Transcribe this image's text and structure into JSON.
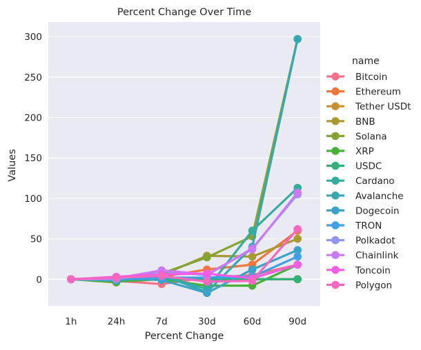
{
  "chart_data": {
    "type": "line",
    "title": "Percent Change Over Time",
    "xlabel": "Percent Change",
    "ylabel": "Values",
    "categories": [
      "1h",
      "24h",
      "7d",
      "30d",
      "60d",
      "90d"
    ],
    "ylim": [
      -33,
      318
    ],
    "yticks": [
      0,
      50,
      100,
      150,
      200,
      250,
      300
    ],
    "grid": true,
    "legend_title": "name",
    "legend_position": "right",
    "series": [
      {
        "name": "Bitcoin",
        "color": "#f77189",
        "values": [
          0,
          -2,
          -6,
          2,
          5,
          18
        ]
      },
      {
        "name": "Ethereum",
        "color": "#f0763d",
        "values": [
          0,
          -1,
          3,
          12,
          18,
          60
        ]
      },
      {
        "name": "Tether USDt",
        "color": "#c98f30",
        "values": [
          0,
          0,
          0,
          0,
          0,
          0
        ]
      },
      {
        "name": "BNB",
        "color": "#a89a31",
        "values": [
          0,
          -2,
          5,
          29,
          28,
          50
        ]
      },
      {
        "name": "Solana",
        "color": "#85a232",
        "values": [
          0,
          -4,
          7,
          27,
          53,
          297
        ]
      },
      {
        "name": "XRP",
        "color": "#4bb037",
        "values": [
          0,
          -3,
          0,
          -8,
          -8,
          18
        ]
      },
      {
        "name": "USDC",
        "color": "#33b07a",
        "values": [
          0,
          0,
          0,
          0,
          0,
          0
        ]
      },
      {
        "name": "Cardano",
        "color": "#35ac9c",
        "values": [
          0,
          -2,
          4,
          -12,
          60,
          113
        ]
      },
      {
        "name": "Avalanche",
        "color": "#37a8b0",
        "values": [
          0,
          -1,
          5,
          -16,
          40,
          297
        ]
      },
      {
        "name": "Dogecoin",
        "color": "#3ba3c6",
        "values": [
          0,
          1,
          -1,
          -17,
          12,
          36
        ]
      },
      {
        "name": "TRON",
        "color": "#40a0e5",
        "values": [
          0,
          0,
          2,
          2,
          3,
          28
        ]
      },
      {
        "name": "Polkadot",
        "color": "#8e96f2",
        "values": [
          0,
          0,
          10,
          5,
          38,
          105
        ]
      },
      {
        "name": "Chainlink",
        "color": "#cc7af4",
        "values": [
          0,
          1,
          11,
          6,
          37,
          107
        ]
      },
      {
        "name": "Toncoin",
        "color": "#f35de6",
        "values": [
          0,
          3,
          6,
          7,
          1,
          18
        ]
      },
      {
        "name": "Polygon",
        "color": "#f668c0",
        "values": [
          0,
          2,
          4,
          -3,
          -2,
          62
        ]
      }
    ]
  }
}
